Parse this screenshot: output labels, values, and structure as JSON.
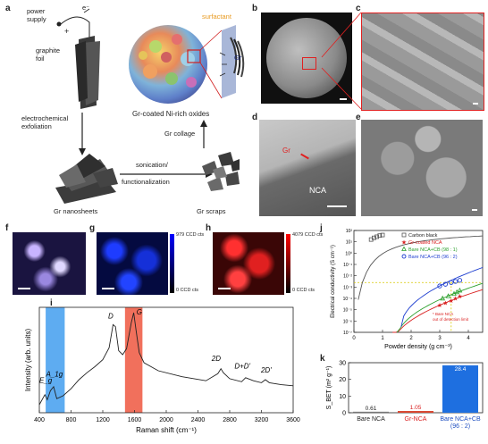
{
  "panels": {
    "a": "a",
    "b": "b",
    "c": "c",
    "d": "d",
    "e": "e",
    "f": "f",
    "g": "g",
    "h": "h",
    "i": "i",
    "j": "j",
    "k": "k"
  },
  "schematic": {
    "power_supply": "power\nsupply",
    "electron": "e⁻",
    "plus": "+",
    "minus": "−",
    "graphite_foil": "graphite\nfoil",
    "exfoliation": "electrochemical\nexfoliation",
    "gr_nanosheets": "Gr nanosheets",
    "sonication": "sonication/",
    "functionalization": "functionalization",
    "gr_scraps": "Gr scraps",
    "gr_collage": "Gr collage",
    "surfactant": "surfactant",
    "gr": "Gr",
    "gr_coated": "Gr-coated Ni-rich oxides"
  },
  "tem": {
    "gr": "Gr",
    "nca": "NCA"
  },
  "maps": {
    "g_top": "979 CCD cts",
    "g_bottom": "0 CCD cts",
    "h_top": "4079 CCD cts",
    "h_bottom": "0 CCD cts"
  },
  "colors": {
    "blue_band": "#4da3f0",
    "red_band": "#f0604a",
    "bar_blue": "#1e6fe0",
    "bar_red": "#d9452f",
    "bar_gray": "#777777"
  },
  "chart_data": [
    {
      "type": "line",
      "title": "",
      "xlabel": "Raman shift (cm⁻¹)",
      "ylabel": "Intensity (arb. units)",
      "xlim": [
        400,
        3600
      ],
      "xticks": [
        "400",
        "800",
        "1200",
        "1600",
        "2000",
        "2400",
        "2800",
        "3200",
        "3600"
      ],
      "annotations": [
        "E_g",
        "A_1g",
        "D",
        "G",
        "2D",
        "D+D'",
        "2D'"
      ],
      "x": [
        400,
        470,
        500,
        540,
        580,
        620,
        700,
        800,
        900,
        1000,
        1100,
        1200,
        1280,
        1330,
        1360,
        1400,
        1450,
        1500,
        1560,
        1590,
        1620,
        1660,
        1720,
        1900,
        2200,
        2500,
        2650,
        2690,
        2720,
        2800,
        2950,
        3000,
        3100,
        3200,
        3250,
        3300,
        3450,
        3600
      ],
      "y": [
        0.08,
        0.18,
        0.13,
        0.22,
        0.26,
        0.14,
        0.17,
        0.24,
        0.33,
        0.4,
        0.46,
        0.53,
        0.65,
        0.88,
        0.86,
        0.62,
        0.58,
        0.64,
        0.9,
        1.0,
        0.82,
        0.6,
        0.5,
        0.42,
        0.36,
        0.32,
        0.39,
        0.44,
        0.4,
        0.34,
        0.31,
        0.35,
        0.32,
        0.3,
        0.33,
        0.3,
        0.28,
        0.27
      ],
      "bands": [
        {
          "from": 480,
          "to": 720,
          "color": "blue"
        },
        {
          "from": 1480,
          "to": 1700,
          "color": "red"
        }
      ]
    },
    {
      "type": "scatter",
      "title": "",
      "xlabel": "Powder density (g cm⁻³)",
      "ylabel": "Electrical conductivity (S cm⁻¹)",
      "xlim": [
        0,
        4.5
      ],
      "ylim_log10": [
        -7,
        2
      ],
      "xticks": [
        "0",
        "1",
        "2",
        "3",
        "4"
      ],
      "yticks": [
        "10⁻⁷",
        "10⁻⁶",
        "10⁻⁵",
        "10⁻⁴",
        "10⁻³",
        "10⁻²",
        "10⁻¹",
        "10⁰",
        "10¹",
        "10²"
      ],
      "legend": "top-right",
      "note": "* Bare NCA\n  out of detection limit",
      "series": [
        {
          "name": "Carbon black",
          "marker": "square",
          "color": "#555555",
          "x": [
            0.6,
            0.7,
            0.8,
            0.9,
            1.0
          ],
          "y_log10": [
            1.2,
            1.35,
            1.45,
            1.55,
            1.6
          ]
        },
        {
          "name": "Gr-coated NCA",
          "marker": "star",
          "color": "#d92020",
          "x": [
            3.0,
            3.2,
            3.4,
            3.55,
            3.7
          ],
          "y_log10": [
            -4.6,
            -4.4,
            -4.2,
            -4.0,
            -3.8
          ]
        },
        {
          "name": "Bare NCA+CB (98 : 1)",
          "marker": "triangle",
          "color": "#2ca02c",
          "x": [
            3.1,
            3.3,
            3.5,
            3.6,
            3.7
          ],
          "y_log10": [
            -4.0,
            -3.8,
            -3.6,
            -3.45,
            -3.3
          ]
        },
        {
          "name": "Bare NCA+CB (96 : 2)",
          "marker": "circle",
          "color": "#1f3fd0",
          "x": [
            3.0,
            3.2,
            3.4,
            3.55,
            3.7
          ],
          "y_log10": [
            -2.9,
            -2.75,
            -2.6,
            -2.5,
            -2.4
          ]
        }
      ]
    },
    {
      "type": "bar",
      "title": "",
      "xlabel": "",
      "ylabel": "S_BET (m² g⁻¹)",
      "ylim": [
        0,
        30
      ],
      "yticks": [
        "0",
        "10",
        "20",
        "30"
      ],
      "categories": [
        "Bare NCA",
        "Gr-NCA",
        "Bare NCA+CB\n(96 : 2)"
      ],
      "values": [
        0.61,
        1.05,
        28.4
      ],
      "value_labels": [
        "0.61",
        "1.05",
        "28.4"
      ]
    }
  ]
}
